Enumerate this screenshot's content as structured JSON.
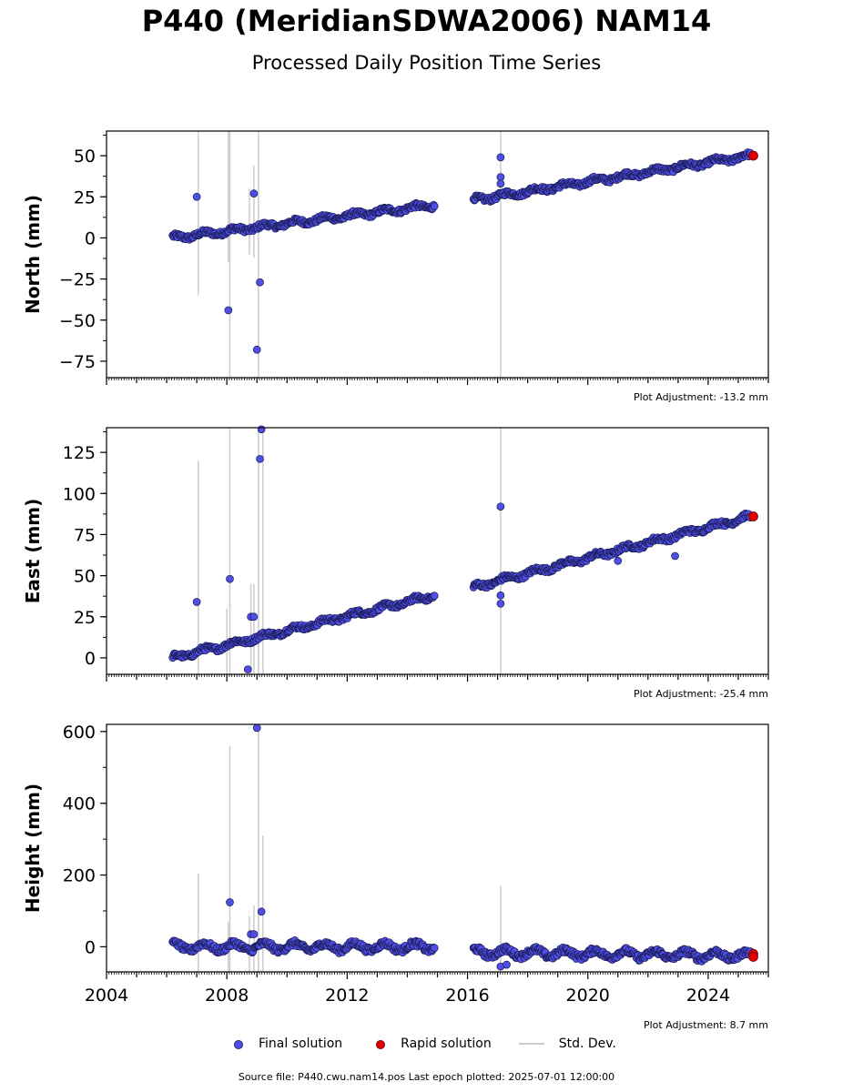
{
  "title": "P440 (MeridianSDWA2006) NAM14",
  "subtitle": "Processed Daily Position Time Series",
  "legend": {
    "final": "Final solution",
    "rapid": "Rapid solution",
    "std": "Std. Dev."
  },
  "source": "Source file: P440.cwu.nam14.pos  Last epoch plotted: 2025-07-01 12:00:00",
  "colors": {
    "final": "#4f4fe8",
    "final_edge": "#1a1a50",
    "rapid": "#e00000",
    "std": "#cccccc"
  },
  "chart_data": [
    {
      "type": "scatter",
      "ylabel": "North (mm)",
      "adjustment": "Plot Adjustment: -13.2 mm",
      "xlim": [
        2004,
        2026
      ],
      "ylim": [
        -85,
        65
      ],
      "yticks": [
        50,
        25,
        0,
        -25,
        -50,
        -75
      ],
      "xticks": [
        2004,
        2008,
        2012,
        2016,
        2020,
        2024
      ],
      "segments": [
        {
          "x": [
            2006.2,
            2014.9
          ],
          "y": [
            0,
            20
          ]
        },
        {
          "x": [
            2016.2,
            2025.4
          ],
          "y": [
            23,
            50
          ]
        }
      ],
      "outliers": [
        [
          2007.0,
          25
        ],
        [
          2008.05,
          -44
        ],
        [
          2009.0,
          -68
        ],
        [
          2009.1,
          -27
        ],
        [
          2008.9,
          27
        ],
        [
          2017.1,
          49
        ],
        [
          2017.1,
          37
        ],
        [
          2017.1,
          33
        ]
      ],
      "rapid": [
        [
          2025.5,
          50
        ]
      ],
      "stdbars": [
        [
          2007.05,
          -35,
          65
        ],
        [
          2008.05,
          -15,
          65
        ],
        [
          2008.1,
          -85,
          65
        ],
        [
          2009.05,
          -85,
          65
        ],
        [
          2017.1,
          -85,
          65
        ],
        [
          2008.75,
          -10,
          30
        ],
        [
          2008.9,
          -12,
          44
        ]
      ]
    },
    {
      "type": "scatter",
      "ylabel": "East (mm)",
      "adjustment": "Plot Adjustment: -25.4 mm",
      "xlim": [
        2004,
        2026
      ],
      "ylim": [
        -10,
        140
      ],
      "yticks": [
        125,
        100,
        75,
        50,
        25,
        0
      ],
      "xticks": [
        2004,
        2008,
        2012,
        2016,
        2020,
        2024
      ],
      "segments": [
        {
          "x": [
            2006.2,
            2014.9
          ],
          "y": [
            0,
            38
          ]
        },
        {
          "x": [
            2016.2,
            2025.4
          ],
          "y": [
            43,
            86
          ]
        }
      ],
      "outliers": [
        [
          2007.0,
          34
        ],
        [
          2008.1,
          48
        ],
        [
          2009.1,
          121
        ],
        [
          2009.15,
          139
        ],
        [
          2008.7,
          -7
        ],
        [
          2008.8,
          25
        ],
        [
          2008.9,
          25
        ],
        [
          2017.1,
          92
        ],
        [
          2017.1,
          33
        ],
        [
          2017.1,
          38
        ],
        [
          2021.0,
          59
        ],
        [
          2022.9,
          62
        ]
      ],
      "rapid": [
        [
          2025.5,
          86
        ]
      ],
      "stdbars": [
        [
          2007.05,
          -10,
          120
        ],
        [
          2008.0,
          -10,
          30
        ],
        [
          2008.1,
          -10,
          140
        ],
        [
          2009.05,
          -10,
          140
        ],
        [
          2009.2,
          -10,
          140
        ],
        [
          2017.1,
          -10,
          140
        ],
        [
          2008.8,
          -10,
          45
        ],
        [
          2008.9,
          -10,
          45
        ]
      ]
    },
    {
      "type": "scatter",
      "ylabel": "Height (mm)",
      "adjustment": "Plot Adjustment: 8.7 mm",
      "xlim": [
        2004,
        2026
      ],
      "ylim": [
        -70,
        620
      ],
      "yticks": [
        600,
        400,
        200,
        0
      ],
      "xticks": [
        2004,
        2008,
        2012,
        2016,
        2020,
        2024
      ],
      "segments": [
        {
          "x": [
            2006.2,
            2014.9
          ],
          "y": [
            0,
            0
          ]
        },
        {
          "x": [
            2016.2,
            2025.4
          ],
          "y": [
            -15,
            -25
          ]
        }
      ],
      "outliers": [
        [
          2008.1,
          124
        ],
        [
          2009.0,
          610
        ],
        [
          2009.15,
          98
        ],
        [
          2008.8,
          35
        ],
        [
          2008.9,
          35
        ],
        [
          2017.1,
          -55
        ],
        [
          2017.3,
          -50
        ]
      ],
      "rapid": [
        [
          2025.5,
          -20
        ],
        [
          2025.5,
          -28
        ]
      ],
      "stdbars": [
        [
          2007.05,
          -70,
          205
        ],
        [
          2008.05,
          -70,
          70
        ],
        [
          2008.1,
          -70,
          560
        ],
        [
          2009.05,
          -70,
          620
        ],
        [
          2009.2,
          -70,
          310
        ],
        [
          2017.1,
          -70,
          170
        ],
        [
          2008.75,
          -70,
          85
        ],
        [
          2008.9,
          -70,
          115
        ]
      ]
    }
  ]
}
